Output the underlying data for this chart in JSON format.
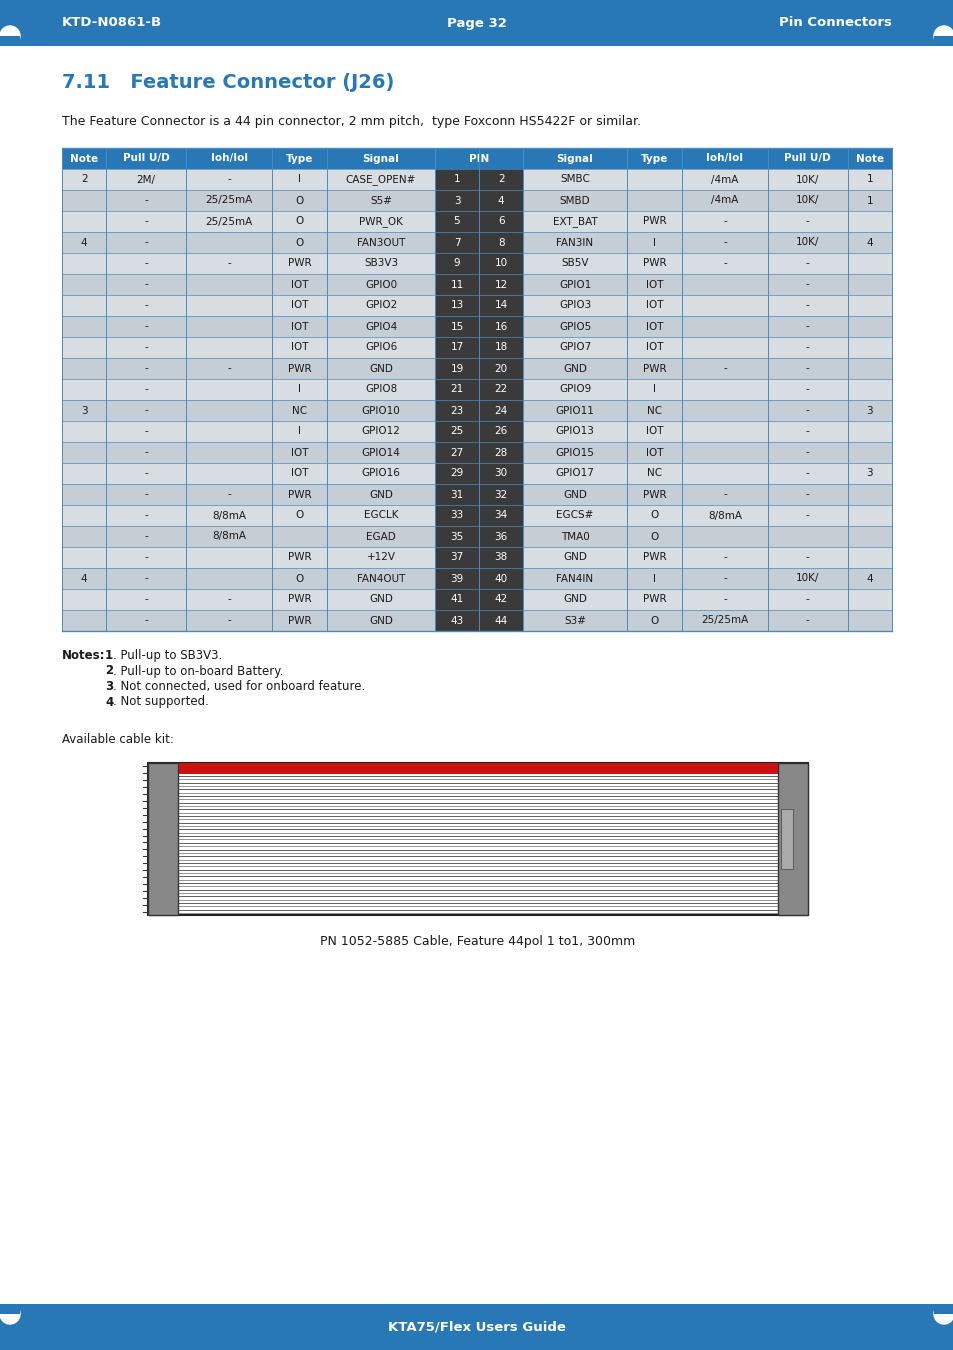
{
  "header_bg": "#2878B8",
  "header_text_color": "#FFFFFF",
  "row_bg_even": "#D8DDE2",
  "row_bg_odd": "#C5CDD5",
  "pin_col_bg": "#3A3A3A",
  "pin_text_color": "#FFFFFF",
  "border_color": "#4A8BBE",
  "cell_text_color": "#1a1a1a",
  "top_bar_color": "#2878B8",
  "bottom_bar_color": "#2878B8",
  "title_color": "#2878B8",
  "section_title": "7.11   Feature Connector (J26)",
  "intro_text": "The Feature Connector is a 44 pin connector, 2 mm pitch,  type Foxconn HS5422F or similar.",
  "top_bar_left": "KTD-N0861-B",
  "top_bar_center": "Page 32",
  "top_bar_right": "Pin Connectors",
  "bottom_bar_text": "KTA75/Flex Users Guide",
  "rows": [
    [
      "2",
      "2M/",
      "-",
      "I",
      "CASE_OPEN#",
      "1",
      "2",
      "SMBC",
      "",
      "/4mA",
      "10K/",
      "1"
    ],
    [
      "",
      "-",
      "25/25mA",
      "O",
      "S5#",
      "3",
      "4",
      "SMBD",
      "",
      "/4mA",
      "10K/",
      "1"
    ],
    [
      "",
      "-",
      "25/25mA",
      "O",
      "PWR_OK",
      "5",
      "6",
      "EXT_BAT",
      "PWR",
      "-",
      "-",
      ""
    ],
    [
      "4",
      "-",
      "",
      "O",
      "FAN3OUT",
      "7",
      "8",
      "FAN3IN",
      "I",
      "-",
      "10K/",
      "4"
    ],
    [
      "",
      "-",
      "-",
      "PWR",
      "SB3V3",
      "9",
      "10",
      "SB5V",
      "PWR",
      "-",
      "-",
      ""
    ],
    [
      "",
      "-",
      "",
      "IOT",
      "GPIO0",
      "11",
      "12",
      "GPIO1",
      "IOT",
      "",
      "-",
      ""
    ],
    [
      "",
      "-",
      "",
      "IOT",
      "GPIO2",
      "13",
      "14",
      "GPIO3",
      "IOT",
      "",
      "-",
      ""
    ],
    [
      "",
      "-",
      "",
      "IOT",
      "GPIO4",
      "15",
      "16",
      "GPIO5",
      "IOT",
      "",
      "-",
      ""
    ],
    [
      "",
      "-",
      "",
      "IOT",
      "GPIO6",
      "17",
      "18",
      "GPIO7",
      "IOT",
      "",
      "-",
      ""
    ],
    [
      "",
      "-",
      "-",
      "PWR",
      "GND",
      "19",
      "20",
      "GND",
      "PWR",
      "-",
      "-",
      ""
    ],
    [
      "",
      "-",
      "",
      "I",
      "GPIO8",
      "21",
      "22",
      "GPIO9",
      "I",
      "",
      "-",
      ""
    ],
    [
      "3",
      "-",
      "",
      "NC",
      "GPIO10",
      "23",
      "24",
      "GPIO11",
      "NC",
      "",
      "-",
      "3"
    ],
    [
      "",
      "-",
      "",
      "I",
      "GPIO12",
      "25",
      "26",
      "GPIO13",
      "IOT",
      "",
      "-",
      ""
    ],
    [
      "",
      "-",
      "",
      "IOT",
      "GPIO14",
      "27",
      "28",
      "GPIO15",
      "IOT",
      "",
      "-",
      ""
    ],
    [
      "",
      "-",
      "",
      "IOT",
      "GPIO16",
      "29",
      "30",
      "GPIO17",
      "NC",
      "",
      "-",
      "3"
    ],
    [
      "",
      "-",
      "-",
      "PWR",
      "GND",
      "31",
      "32",
      "GND",
      "PWR",
      "-",
      "-",
      ""
    ],
    [
      "",
      "-",
      "8/8mA",
      "O",
      "EGCLK",
      "33",
      "34",
      "EGCS#",
      "O",
      "8/8mA",
      "-",
      ""
    ],
    [
      "",
      "-",
      "8/8mA",
      "",
      "EGAD",
      "35",
      "36",
      "TMA0",
      "O",
      "",
      "",
      ""
    ],
    [
      "",
      "-",
      "",
      "PWR",
      "+12V",
      "37",
      "38",
      "GND",
      "PWR",
      "-",
      "-",
      ""
    ],
    [
      "4",
      "-",
      "",
      "O",
      "FAN4OUT",
      "39",
      "40",
      "FAN4IN",
      "I",
      "-",
      "10K/",
      "4"
    ],
    [
      "",
      "-",
      "-",
      "PWR",
      "GND",
      "41",
      "42",
      "GND",
      "PWR",
      "-",
      "-",
      ""
    ],
    [
      "",
      "-",
      "-",
      "PWR",
      "GND",
      "43",
      "44",
      "S3#",
      "O",
      "25/25mA",
      "-",
      ""
    ]
  ],
  "notes": [
    [
      "1",
      ". Pull-up to SB3V3."
    ],
    [
      "2",
      ". Pull-up to on-board Battery."
    ],
    [
      "3",
      ". Not connected, used for onboard feature."
    ],
    [
      "4",
      ". Not supported."
    ]
  ],
  "cable_label": "PN 1052-5885 Cable, Feature 44pol 1 to1, 300mm",
  "available_cable_kit": "Available cable kit:"
}
